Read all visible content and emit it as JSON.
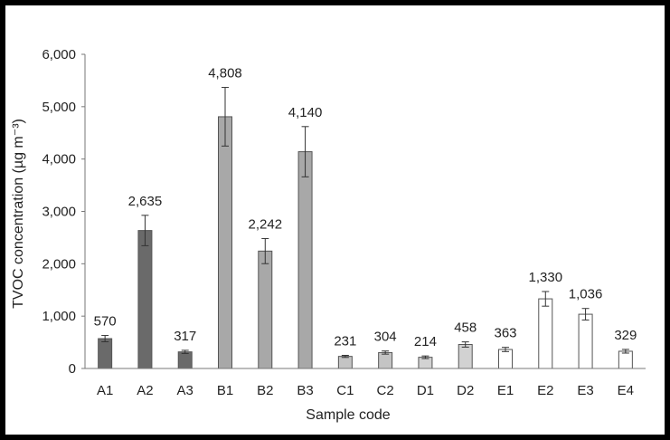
{
  "chart_data": {
    "type": "bar",
    "xlabel": "Sample code",
    "ylabel": "TVOC concentration (µg m⁻³)",
    "ylim": [
      0,
      6000
    ],
    "yticks": [
      0,
      1000,
      2000,
      3000,
      4000,
      5000,
      6000
    ],
    "ytick_labels": [
      "0",
      "1,000",
      "2,000",
      "3,000",
      "4,000",
      "5,000",
      "6,000"
    ],
    "grid": false,
    "legend": "none",
    "categories": [
      "A1",
      "A2",
      "A3",
      "B1",
      "B2",
      "B3",
      "C1",
      "C2",
      "D1",
      "D2",
      "E1",
      "E2",
      "E3",
      "E4"
    ],
    "values": [
      570,
      2635,
      317,
      4808,
      2242,
      4140,
      231,
      304,
      214,
      458,
      363,
      1330,
      1036,
      329
    ],
    "value_labels": [
      "570",
      "2,635",
      "317",
      "4,808",
      "2,242",
      "4,140",
      "231",
      "304",
      "214",
      "458",
      "363",
      "1,330",
      "1,036",
      "329"
    ],
    "error": [
      60,
      290,
      30,
      560,
      240,
      480,
      20,
      30,
      25,
      50,
      40,
      140,
      110,
      35
    ],
    "group_colors": {
      "A": "#6a6a6a",
      "B": "#a8a8a8",
      "C": "#c4c4c4",
      "D": "#d2d2d2",
      "E": "#ffffff"
    }
  }
}
